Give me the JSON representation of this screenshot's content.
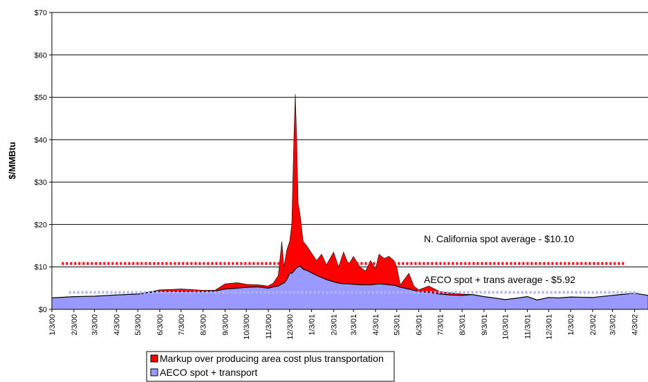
{
  "chart_data": {
    "type": "stacked_area",
    "y_axis_label": "$/MMBtu",
    "ylim": [
      0,
      70
    ],
    "yticks": [
      {
        "value": 0,
        "label": "$0"
      },
      {
        "value": 10,
        "label": "$10"
      },
      {
        "value": 20,
        "label": "$20"
      },
      {
        "value": 30,
        "label": "$30"
      },
      {
        "value": 40,
        "label": "$40"
      },
      {
        "value": 50,
        "label": "$50"
      },
      {
        "value": 60,
        "label": "$60"
      },
      {
        "value": 70,
        "label": "$70"
      }
    ],
    "xlim": [
      "1/3/00",
      "4/22/02"
    ],
    "xticks": [
      "1/3/00",
      "2/3/00",
      "3/3/00",
      "4/3/00",
      "5/3/00",
      "6/3/00",
      "7/3/00",
      "8/3/00",
      "9/3/00",
      "10/3/00",
      "11/3/00",
      "12/3/00",
      "1/3/01",
      "2/3/01",
      "3/3/01",
      "4/3/01",
      "5/3/01",
      "6/3/01",
      "7/3/01",
      "8/3/01",
      "9/3/01",
      "10/3/01",
      "11/3/01",
      "12/3/01",
      "1/3/02",
      "2/3/02",
      "3/3/02",
      "4/3/02"
    ],
    "grid": true,
    "x": [
      "1/3/00",
      "2/3/00",
      "3/3/00",
      "4/3/00",
      "5/3/00",
      "6/3/00",
      "7/3/00",
      "8/3/00",
      "8/20/00",
      "9/3/00",
      "9/20/00",
      "10/3/00",
      "10/20/00",
      "11/3/00",
      "11/10/00",
      "11/17/00",
      "11/22/00",
      "11/25/00",
      "11/29/00",
      "12/3/00",
      "12/6/00",
      "12/9/00",
      "12/11/00",
      "12/13/00",
      "12/15/00",
      "12/18/00",
      "12/22/00",
      "12/27/00",
      "1/10/01",
      "1/17/01",
      "1/24/01",
      "2/3/01",
      "2/10/01",
      "2/17/01",
      "2/24/01",
      "3/3/01",
      "3/12/01",
      "3/20/01",
      "3/27/01",
      "4/3/01",
      "4/8/01",
      "4/15/01",
      "4/22/01",
      "4/29/01",
      "5/3/01",
      "5/8/01",
      "5/20/01",
      "5/27/01",
      "6/3/01",
      "6/17/01",
      "7/3/01",
      "7/17/01",
      "8/3/01",
      "8/17/01",
      "9/3/01",
      "9/17/01",
      "10/3/01",
      "10/17/01",
      "11/3/01",
      "11/17/01",
      "12/3/01",
      "12/17/01",
      "1/3/02",
      "2/3/02",
      "3/3/02",
      "4/3/02",
      "4/22/02"
    ],
    "series": [
      {
        "name": "AECO spot + transport",
        "color": "#9999ff",
        "values": [
          2.7,
          3.0,
          3.1,
          3.4,
          3.6,
          4.3,
          4.2,
          4.2,
          4.3,
          4.8,
          5.0,
          5.2,
          5.3,
          5.0,
          5.3,
          5.5,
          6.0,
          6.2,
          7.0,
          8.5,
          8.5,
          9.0,
          9.5,
          9.8,
          10.0,
          10.2,
          9.5,
          9.2,
          8.0,
          7.5,
          7.0,
          6.5,
          6.2,
          6.0,
          6.0,
          5.9,
          5.8,
          5.8,
          5.8,
          5.9,
          6.0,
          5.9,
          5.8,
          5.7,
          5.5,
          5.2,
          4.8,
          4.5,
          4.2,
          4.0,
          3.6,
          3.4,
          3.3,
          3.5,
          3.0,
          2.7,
          2.3,
          2.6,
          3.0,
          2.2,
          2.8,
          2.7,
          2.9,
          2.8,
          3.3,
          3.8,
          3.3
        ]
      },
      {
        "name": "Markup over producing area cost plus transportation",
        "color": "#ff0000",
        "values": [
          0,
          0,
          0,
          0,
          0,
          0.3,
          0.6,
          0.3,
          0.2,
          1.2,
          1.3,
          0.7,
          0.5,
          0.5,
          0.9,
          2.5,
          10.0,
          3.8,
          7.0,
          7.5,
          11.5,
          31.0,
          41.3,
          30.2,
          15.0,
          11.8,
          6.5,
          5.8,
          3.5,
          5.5,
          3.5,
          7.0,
          3.8,
          7.5,
          4.5,
          6.6,
          4.2,
          3.2,
          5.7,
          3.6,
          7.0,
          6.1,
          6.7,
          5.8,
          4.5,
          0.6,
          3.7,
          1.0,
          0.4,
          1.5,
          0.6,
          0.5,
          0.3,
          0,
          0,
          0,
          0,
          0,
          0,
          0,
          0,
          0,
          0,
          0,
          0,
          0,
          0
        ]
      }
    ],
    "reference_lines": [
      {
        "value": 10.8,
        "color": "#ff0000",
        "x": [
          "1/17/00",
          "3/22/02"
        ]
      },
      {
        "value": 4.0,
        "color": "#b3b3ff",
        "x": [
          "1/27/00",
          "4/8/02"
        ]
      }
    ],
    "annotations": [
      "N. California spot average - $10.10",
      "AECO spot + trans average - $5.92"
    ]
  }
}
